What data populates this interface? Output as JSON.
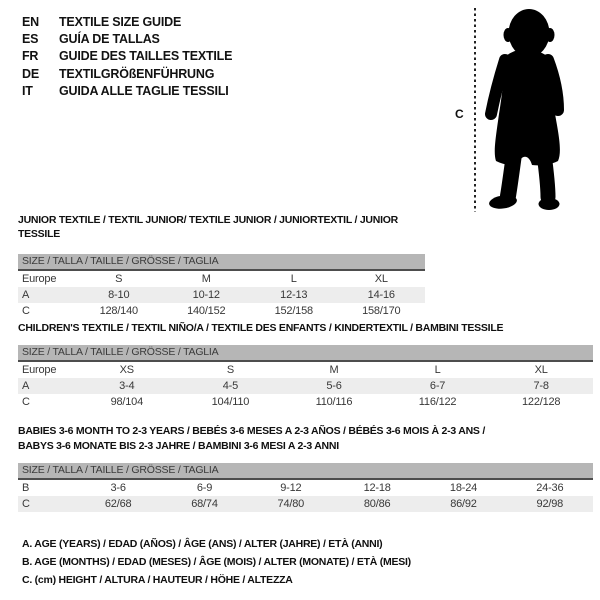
{
  "colors": {
    "background": "#ffffff",
    "size_bar_bg": "#b6b6b6",
    "size_bar_border": "#4d4d4d",
    "shaded_row": "#ededed",
    "text": "#101010",
    "silhouette": "#000000"
  },
  "header": {
    "languages": [
      {
        "code": "EN",
        "label": "TEXTILE SIZE GUIDE"
      },
      {
        "code": "ES",
        "label": "GUÍA DE TALLAS"
      },
      {
        "code": "FR",
        "label": "GUIDE DES TAILLES TEXTILE"
      },
      {
        "code": "DE",
        "label": "TEXTILGRÖßENFÜHRUNG"
      },
      {
        "code": "IT",
        "label": "GUIDA ALLE TAGLIE TESSILI"
      }
    ]
  },
  "figure": {
    "description": "baby-silhouette-with-height-line",
    "measure_label": "C"
  },
  "tables": [
    {
      "title": "JUNIOR TEXTILE / TEXTIL JUNIOR/ TEXTILE JUNIOR / JUNIORTEXTIL / JUNIOR TESSILE",
      "size_header": "SIZE / TALLA / TAILLE / GRÖSSE / TAGLIA",
      "rows": [
        {
          "label": "Europe",
          "cells": [
            "S",
            "M",
            "L",
            "XL"
          ],
          "shaded": false
        },
        {
          "label": "A",
          "cells": [
            "8-10",
            "10-12",
            "12-13",
            "14-16"
          ],
          "shaded": true
        },
        {
          "label": "C",
          "cells": [
            "128/140",
            "140/152",
            "152/158",
            "158/170"
          ],
          "shaded": false
        }
      ]
    },
    {
      "title": "CHILDREN'S TEXTILE / TEXTIL NIÑO/A / TEXTILE DES ENFANTS / KINDERTEXTIL / BAMBINI TESSILE",
      "size_header": "SIZE / TALLA / TAILLE / GRÖSSE / TAGLIA",
      "rows": [
        {
          "label": "Europe",
          "cells": [
            "XS",
            "S",
            "M",
            "L",
            "XL"
          ],
          "shaded": false
        },
        {
          "label": "A",
          "cells": [
            "3-4",
            "4-5",
            "5-6",
            "6-7",
            "7-8"
          ],
          "shaded": true
        },
        {
          "label": "C",
          "cells": [
            "98/104",
            "104/110",
            "110/116",
            "116/122",
            "122/128"
          ],
          "shaded": false
        }
      ]
    },
    {
      "title": "BABIES 3-6 MONTH TO 2-3 YEARS / BEBÉS 3-6 MESES A 2-3 AÑOS / BÉBÉS 3-6 MOIS À 2-3 ANS /\nBABYS 3-6 MONATE BIS 2-3 JAHRE / BAMBINI 3-6 MESI A 2-3 ANNI",
      "size_header": "SIZE / TALLA / TAILLE / GRÖSSE / TAGLIA",
      "rows": [
        {
          "label": "B",
          "cells": [
            "3-6",
            "6-9",
            "9-12",
            "12-18",
            "18-24",
            "24-36"
          ],
          "shaded": false
        },
        {
          "label": "C",
          "cells": [
            "62/68",
            "68/74",
            "74/80",
            "80/86",
            "86/92",
            "92/98"
          ],
          "shaded": true
        }
      ]
    }
  ],
  "footnotes": [
    "A. AGE (YEARS) / EDAD (AÑOS) / ÂGE (ANS) / ALTER (JAHRE) / ETÀ (ANNI)",
    "B. AGE (MONTHS) / EDAD (MESES) / ÂGE (MOIS) / ALTER (MONATE) / ETÀ (MESI)",
    "C. (cm) HEIGHT / ALTURA / HAUTEUR / HÖHE / ALTEZZA"
  ]
}
